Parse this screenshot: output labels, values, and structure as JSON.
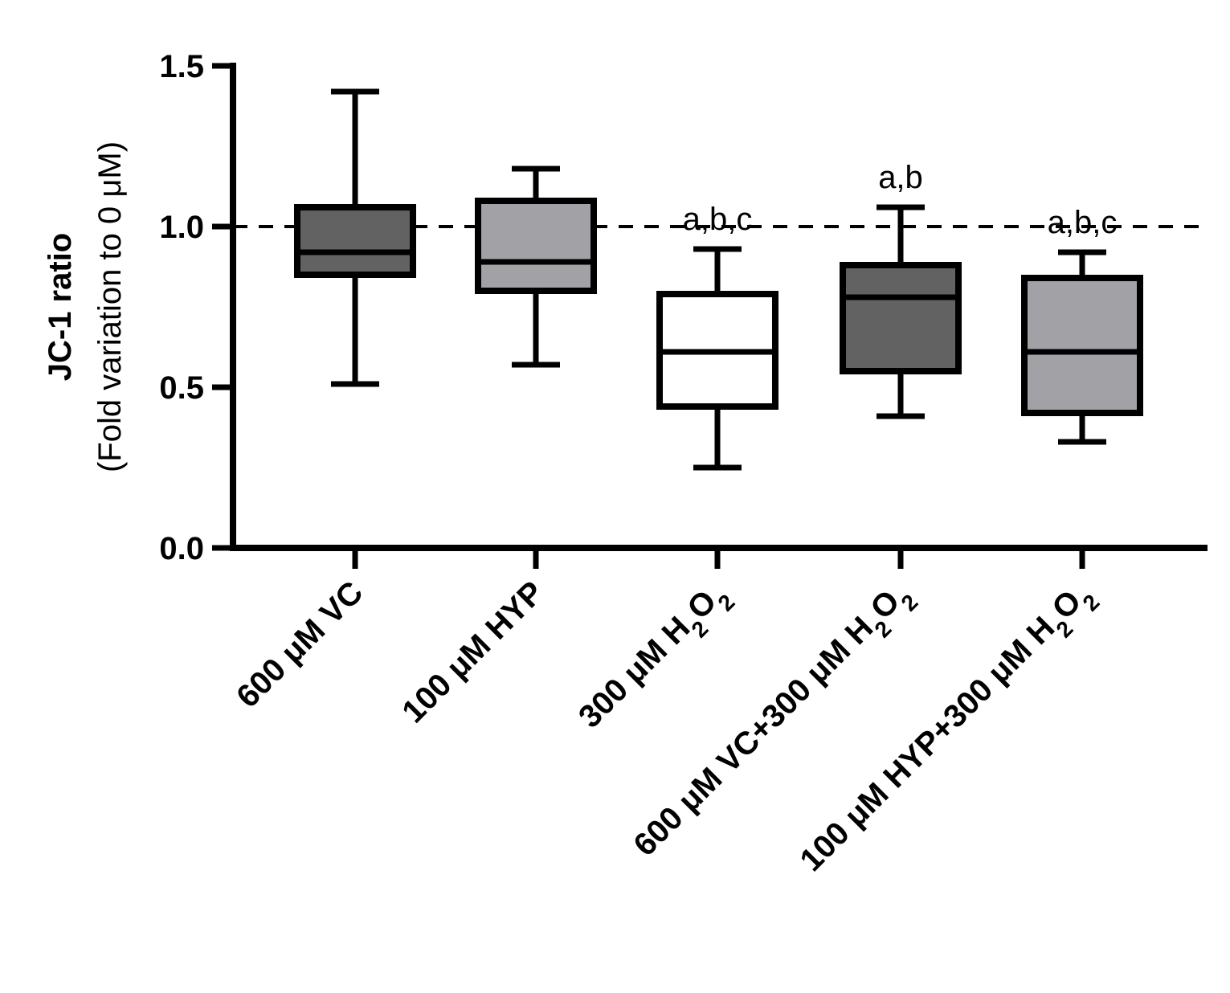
{
  "chart_data": {
    "type": "box",
    "ylabel": "JC-1 ratio",
    "ylabel_sub": "(Fold variation to 0 μM)",
    "ylim": [
      0,
      1.5
    ],
    "yticks": [
      "0.0",
      "0.5",
      "1.0",
      "1.5"
    ],
    "yticks_values": [
      0,
      0.5,
      1.0,
      1.5
    ],
    "reference_line": 1.0,
    "grid": false,
    "colors": {
      "dark": "#626262",
      "light": "#a2a1a6",
      "white": "#ffffff",
      "stroke": "#000000"
    },
    "categories": [
      {
        "label": "600 μM VC",
        "parts": [
          {
            "t": "600 μM VC"
          }
        ]
      },
      {
        "label": "100 μM HYP",
        "parts": [
          {
            "t": "100 μM HYP"
          }
        ]
      },
      {
        "label": "300 μM H2O2",
        "parts": [
          {
            "t": "300 μM H"
          },
          {
            "t": "2",
            "sub": true
          },
          {
            "t": "O"
          },
          {
            "t": "2",
            "sub": true
          }
        ]
      },
      {
        "label": "600 μM VC+300 μM H2O2",
        "parts": [
          {
            "t": "600 μM VC+300 μM H"
          },
          {
            "t": "2",
            "sub": true
          },
          {
            "t": "O"
          },
          {
            "t": "2",
            "sub": true
          }
        ]
      },
      {
        "label": "100 μM HYP+300 μM H2O2",
        "parts": [
          {
            "t": "100 μM HYP+300 μM H"
          },
          {
            "t": "2",
            "sub": true
          },
          {
            "t": "O"
          },
          {
            "t": "2",
            "sub": true
          }
        ]
      }
    ],
    "boxes": [
      {
        "min": 0.51,
        "q1": 0.85,
        "median": 0.92,
        "q3": 1.06,
        "max": 1.42,
        "fill": "dark",
        "annotation": ""
      },
      {
        "min": 0.57,
        "q1": 0.8,
        "median": 0.89,
        "q3": 1.08,
        "max": 1.18,
        "fill": "light",
        "annotation": ""
      },
      {
        "min": 0.25,
        "q1": 0.44,
        "median": 0.61,
        "q3": 0.79,
        "max": 0.93,
        "fill": "white",
        "annotation": "a,b,c"
      },
      {
        "min": 0.41,
        "q1": 0.55,
        "median": 0.78,
        "q3": 0.88,
        "max": 1.06,
        "fill": "dark",
        "annotation": "a,b"
      },
      {
        "min": 0.33,
        "q1": 0.42,
        "median": 0.61,
        "q3": 0.84,
        "max": 0.92,
        "fill": "light",
        "annotation": "a,b,c"
      }
    ]
  }
}
